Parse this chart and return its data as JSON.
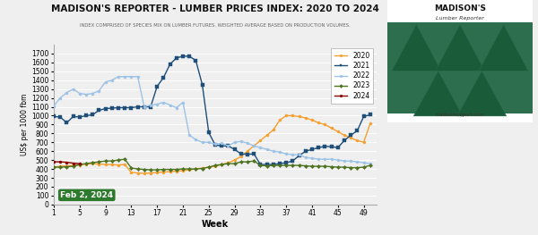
{
  "title": "MADISON'S REPORTER - LUMBER PRICES INDEX: 2020 TO 2024",
  "subtitle": "INDEX COMPRISED OF SPECIES MIX ON LUMBER FUTURES. WEIGHTED AVERAGE BASED ON PRODUCTION VOLUMES.",
  "xlabel": "Week",
  "ylabel": "US$ per 1000 fbm",
  "date_label": "Feb 2, 2024",
  "xlim": [
    1,
    51
  ],
  "ylim": [
    0,
    1800
  ],
  "yticks": [
    0,
    100,
    200,
    300,
    400,
    500,
    600,
    700,
    800,
    900,
    1000,
    1100,
    1200,
    1300,
    1400,
    1500,
    1600,
    1700
  ],
  "xticks": [
    1,
    5,
    9,
    13,
    17,
    21,
    25,
    29,
    33,
    37,
    41,
    45,
    49
  ],
  "bg_color": "#efefef",
  "grid_color": "#ffffff",
  "logo_bg": "#2d6e4e",
  "logo_triangles": "#1e5038",
  "series": {
    "2020": {
      "color": "#f5a030",
      "marker": "o",
      "weeks": [
        1,
        2,
        3,
        4,
        5,
        6,
        7,
        8,
        9,
        10,
        11,
        12,
        13,
        14,
        15,
        16,
        17,
        18,
        19,
        20,
        21,
        22,
        23,
        24,
        25,
        26,
        27,
        28,
        29,
        30,
        31,
        32,
        33,
        34,
        35,
        36,
        37,
        38,
        39,
        40,
        41,
        42,
        43,
        44,
        45,
        46,
        47,
        48,
        49,
        50
      ],
      "values": [
        420,
        430,
        435,
        440,
        445,
        455,
        460,
        455,
        450,
        448,
        445,
        450,
        360,
        355,
        350,
        355,
        360,
        365,
        370,
        375,
        380,
        390,
        400,
        410,
        420,
        430,
        450,
        470,
        500,
        540,
        600,
        660,
        720,
        780,
        840,
        950,
        1000,
        1000,
        990,
        975,
        950,
        920,
        900,
        860,
        820,
        780,
        750,
        720,
        700,
        910
      ]
    },
    "2021": {
      "color": "#1f4e79",
      "marker": "s",
      "weeks": [
        1,
        2,
        3,
        4,
        5,
        6,
        7,
        8,
        9,
        10,
        11,
        12,
        13,
        14,
        15,
        16,
        17,
        18,
        19,
        20,
        21,
        22,
        23,
        24,
        25,
        26,
        27,
        28,
        29,
        30,
        31,
        32,
        33,
        34,
        35,
        36,
        37,
        38,
        39,
        40,
        41,
        42,
        43,
        44,
        45,
        46,
        47,
        48,
        49,
        50
      ],
      "values": [
        990,
        985,
        920,
        990,
        985,
        1000,
        1010,
        1060,
        1080,
        1085,
        1090,
        1090,
        1090,
        1100,
        1100,
        1100,
        1330,
        1430,
        1580,
        1650,
        1670,
        1670,
        1620,
        1350,
        810,
        670,
        660,
        660,
        620,
        570,
        565,
        570,
        450,
        450,
        450,
        460,
        470,
        490,
        550,
        600,
        620,
        640,
        655,
        650,
        640,
        720,
        780,
        830,
        990,
        1010
      ]
    },
    "2022": {
      "color": "#9dc3e6",
      "marker": "o",
      "weeks": [
        1,
        2,
        3,
        4,
        5,
        6,
        7,
        8,
        9,
        10,
        11,
        12,
        13,
        14,
        15,
        16,
        17,
        18,
        19,
        20,
        21,
        22,
        23,
        24,
        25,
        26,
        27,
        28,
        29,
        30,
        31,
        32,
        33,
        34,
        35,
        36,
        37,
        38,
        39,
        40,
        41,
        42,
        43,
        44,
        45,
        46,
        47,
        48,
        49,
        50
      ],
      "values": [
        1110,
        1200,
        1260,
        1300,
        1250,
        1240,
        1250,
        1280,
        1380,
        1400,
        1440,
        1440,
        1440,
        1440,
        1100,
        1120,
        1130,
        1150,
        1120,
        1090,
        1150,
        780,
        730,
        700,
        700,
        680,
        690,
        660,
        700,
        710,
        690,
        660,
        640,
        620,
        600,
        590,
        570,
        560,
        560,
        530,
        520,
        510,
        510,
        510,
        500,
        490,
        490,
        480,
        470,
        460
      ]
    },
    "2023": {
      "color": "#4e7320",
      "marker": "D",
      "weeks": [
        1,
        2,
        3,
        4,
        5,
        6,
        7,
        8,
        9,
        10,
        11,
        12,
        13,
        14,
        15,
        16,
        17,
        18,
        19,
        20,
        21,
        22,
        23,
        24,
        25,
        26,
        27,
        28,
        29,
        30,
        31,
        32,
        33,
        34,
        35,
        36,
        37,
        38,
        39,
        40,
        41,
        42,
        43,
        44,
        45,
        46,
        47,
        48,
        49,
        50
      ],
      "values": [
        420,
        420,
        425,
        430,
        450,
        460,
        470,
        480,
        490,
        490,
        500,
        510,
        410,
        400,
        395,
        390,
        390,
        395,
        395,
        395,
        400,
        400,
        400,
        405,
        420,
        440,
        450,
        460,
        460,
        480,
        480,
        490,
        440,
        435,
        440,
        440,
        440,
        440,
        440,
        435,
        430,
        430,
        430,
        425,
        420,
        420,
        415,
        415,
        420,
        440
      ]
    },
    "2024": {
      "color": "#8b0000",
      "marker": "o",
      "weeks": [
        1,
        2,
        3,
        4,
        5
      ],
      "values": [
        480,
        480,
        475,
        465,
        460
      ]
    }
  }
}
